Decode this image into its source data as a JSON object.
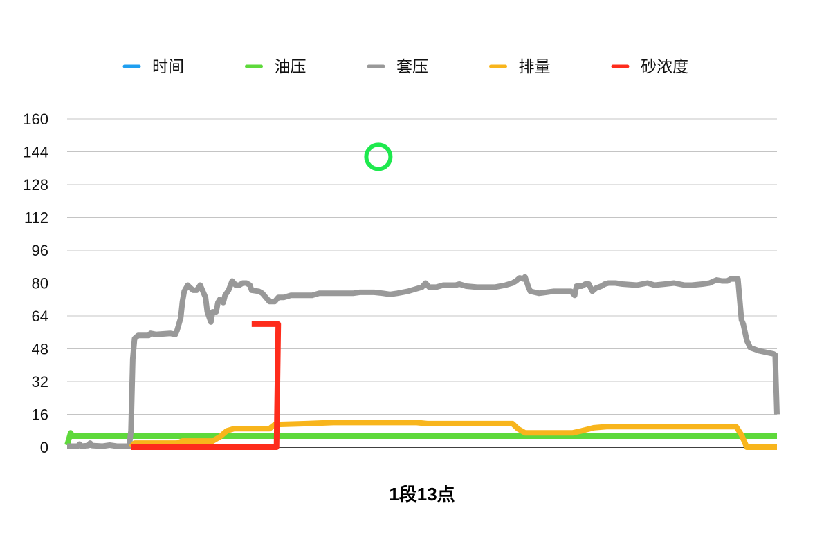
{
  "chart_data": {
    "type": "line",
    "xlabel": "1段13点",
    "xlim": [
      0,
      400
    ],
    "ylim": [
      0,
      160
    ],
    "yticks": [
      0,
      16,
      32,
      48,
      64,
      80,
      96,
      112,
      128,
      144,
      160
    ],
    "grid": "horizontal",
    "legend_position": "top",
    "series": [
      {
        "name": "时间",
        "color": "#1f9ff0",
        "points": []
      },
      {
        "name": "油压",
        "color": "#5ed93b",
        "points": [
          [
            0,
            1
          ],
          [
            2,
            7
          ],
          [
            3,
            5.4
          ],
          [
            400,
            5.4
          ]
        ]
      },
      {
        "name": "套压",
        "color": "#999999",
        "points": [
          [
            0,
            0.5
          ],
          [
            6,
            0.5
          ],
          [
            7,
            1.5
          ],
          [
            8,
            0.5
          ],
          [
            12,
            0.8
          ],
          [
            13,
            2
          ],
          [
            14,
            0.8
          ],
          [
            20,
            0.5
          ],
          [
            24,
            1
          ],
          [
            28,
            0.5
          ],
          [
            35,
            0.5
          ],
          [
            36,
            8
          ],
          [
            37,
            43
          ],
          [
            38,
            53
          ],
          [
            40,
            54.5
          ],
          [
            46,
            54.5
          ],
          [
            47,
            55.5
          ],
          [
            50,
            55
          ],
          [
            58,
            55.5
          ],
          [
            61,
            55
          ],
          [
            62,
            57
          ],
          [
            63,
            60
          ],
          [
            64,
            63
          ],
          [
            65,
            71
          ],
          [
            66,
            76
          ],
          [
            68,
            79
          ],
          [
            69,
            78
          ],
          [
            71,
            76.5
          ],
          [
            73,
            76.5
          ],
          [
            75,
            79
          ],
          [
            77,
            75
          ],
          [
            78,
            73
          ],
          [
            79,
            66
          ],
          [
            81,
            61
          ],
          [
            82,
            66
          ],
          [
            84,
            66
          ],
          [
            85,
            70.5
          ],
          [
            86,
            72
          ],
          [
            88,
            70.5
          ],
          [
            89,
            74
          ],
          [
            91,
            76.5
          ],
          [
            93,
            81
          ],
          [
            95,
            79
          ],
          [
            97,
            79
          ],
          [
            99,
            80
          ],
          [
            101,
            80
          ],
          [
            103,
            79
          ],
          [
            104,
            76.5
          ],
          [
            108,
            76
          ],
          [
            110,
            75
          ],
          [
            112,
            73
          ],
          [
            114,
            71
          ],
          [
            117,
            71
          ],
          [
            119,
            73
          ],
          [
            122,
            73
          ],
          [
            126,
            74
          ],
          [
            132,
            74
          ],
          [
            138,
            74
          ],
          [
            142,
            75
          ],
          [
            149,
            75
          ],
          [
            161,
            75
          ],
          [
            165,
            75.5
          ],
          [
            173,
            75.5
          ],
          [
            178,
            75
          ],
          [
            182,
            74.5
          ],
          [
            186,
            75
          ],
          [
            192,
            76
          ],
          [
            196,
            77
          ],
          [
            200,
            78
          ],
          [
            202,
            80
          ],
          [
            204,
            78
          ],
          [
            208,
            78
          ],
          [
            212,
            79
          ],
          [
            219,
            79
          ],
          [
            221,
            79.5
          ],
          [
            225,
            78.5
          ],
          [
            231,
            78
          ],
          [
            241,
            78
          ],
          [
            247,
            79
          ],
          [
            251,
            80
          ],
          [
            253,
            81
          ],
          [
            255,
            82.5
          ],
          [
            257,
            82
          ],
          [
            258,
            83
          ],
          [
            260,
            78
          ],
          [
            261,
            76
          ],
          [
            266,
            75
          ],
          [
            270,
            75.5
          ],
          [
            274,
            76
          ],
          [
            284,
            76
          ],
          [
            286,
            74
          ],
          [
            287,
            78.5
          ],
          [
            290,
            78.5
          ],
          [
            292,
            79.5
          ],
          [
            294,
            79.5
          ],
          [
            296,
            76
          ],
          [
            298,
            77.5
          ],
          [
            301,
            78.5
          ],
          [
            303,
            79.5
          ],
          [
            305,
            80
          ],
          [
            309,
            80
          ],
          [
            313,
            79.5
          ],
          [
            321,
            79
          ],
          [
            327,
            80
          ],
          [
            331,
            79
          ],
          [
            337,
            79.5
          ],
          [
            342,
            80
          ],
          [
            348,
            79
          ],
          [
            352,
            79
          ],
          [
            358,
            79.5
          ],
          [
            362,
            80
          ],
          [
            366,
            81.5
          ],
          [
            369,
            81
          ],
          [
            372,
            81
          ],
          [
            374,
            82
          ],
          [
            378,
            82
          ],
          [
            380,
            62
          ],
          [
            381,
            60
          ],
          [
            383,
            52
          ],
          [
            385,
            48.5
          ],
          [
            390,
            47
          ],
          [
            398,
            45.5
          ],
          [
            399,
            45
          ],
          [
            400,
            16
          ]
        ]
      },
      {
        "name": "排量",
        "color": "#f8b51c",
        "points": [
          [
            36,
            0
          ],
          [
            38,
            2
          ],
          [
            62,
            2
          ],
          [
            65,
            3
          ],
          [
            82,
            3
          ],
          [
            86,
            5
          ],
          [
            90,
            8
          ],
          [
            94,
            9
          ],
          [
            114,
            9
          ],
          [
            117,
            11
          ],
          [
            135,
            11.5
          ],
          [
            150,
            12
          ],
          [
            197,
            12
          ],
          [
            203,
            11.5
          ],
          [
            251,
            11.5
          ],
          [
            254,
            9
          ],
          [
            258,
            7
          ],
          [
            285,
            7
          ],
          [
            290,
            8
          ],
          [
            297,
            9.5
          ],
          [
            304,
            10
          ],
          [
            377,
            10
          ],
          [
            380,
            6
          ],
          [
            383,
            0
          ],
          [
            400,
            0
          ]
        ]
      },
      {
        "name": "砂浓度",
        "color": "#fe2c1c",
        "points": [
          [
            36,
            0
          ],
          [
            118,
            0
          ],
          [
            119,
            60
          ],
          [
            104,
            60
          ]
        ]
      }
    ],
    "annotations": [
      {
        "marker": "circle",
        "x": 175.4,
        "y": 141.5,
        "color": "#1ee94e"
      }
    ]
  }
}
